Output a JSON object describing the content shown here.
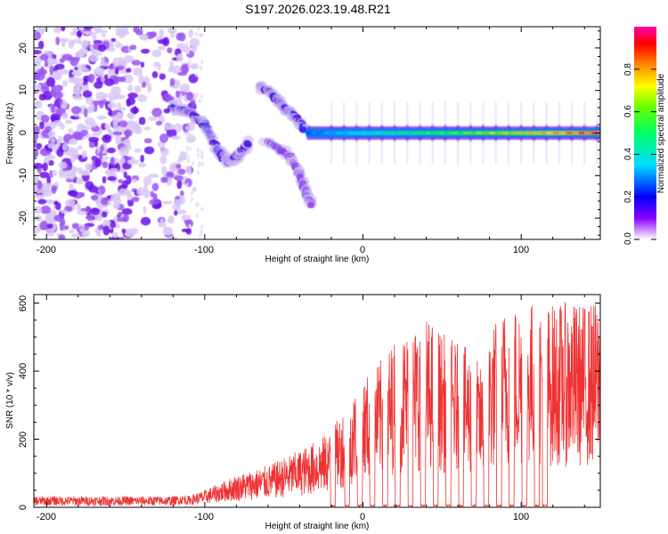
{
  "chart_data": [
    {
      "type": "heatmap",
      "title": "S197.2026.023.19.48.R21",
      "xlabel": "Height of straight line (km)",
      "ylabel": "Frequency (Hz)",
      "xlim": [
        -208,
        150
      ],
      "ylim": [
        -25,
        25
      ],
      "xticks": [
        -200,
        -100,
        0,
        100
      ],
      "yticks": [
        -20,
        -10,
        0,
        10,
        20
      ],
      "xtick_labels": [
        "-200",
        "-100",
        "0",
        "100"
      ],
      "ytick_labels": [
        "-20",
        "-10",
        "0",
        "10",
        "20"
      ],
      "colorbar": {
        "label": "Normalized spectral amplitude",
        "range": [
          0,
          1
        ],
        "ticks": [
          0.0,
          0.2,
          0.4,
          0.6,
          0.8
        ],
        "tick_labels": [
          "0.0",
          "0.2",
          "0.4",
          "0.6",
          "0.8"
        ]
      },
      "features": [
        {
          "name": "noise scatter",
          "x_range": [
            -208,
            -112
          ],
          "y_range": [
            -25,
            25
          ],
          "amplitude": 0.08
        },
        {
          "name": "descending track",
          "points": [
            [
              -120,
              6
            ],
            [
              -110,
              5
            ],
            [
              -100,
              2
            ],
            [
              -92,
              -4
            ],
            [
              -85,
              -7
            ],
            [
              -78,
              -5
            ],
            [
              -72,
              -2
            ]
          ],
          "amplitude": 0.3
        },
        {
          "name": "upper branch",
          "points": [
            [
              -65,
              11
            ],
            [
              -57,
              9
            ],
            [
              -50,
              6
            ],
            [
              -43,
              4
            ],
            [
              -37,
              1
            ]
          ],
          "amplitude": 0.3
        },
        {
          "name": "lower branch",
          "points": [
            [
              -60,
              -2
            ],
            [
              -45,
              -6
            ],
            [
              -38,
              -12
            ],
            [
              -33,
              -17
            ]
          ],
          "amplitude": 0.12
        },
        {
          "name": "carrier line",
          "x_range": [
            -35,
            150
          ],
          "y": 0,
          "amplitude_start": 0.3,
          "amplitude_end": 0.95
        }
      ]
    },
    {
      "type": "line",
      "xlabel": "Height of straight line (km)",
      "ylabel": "SNR (10 * v/v)",
      "xlim": [
        -208,
        150
      ],
      "ylim": [
        0,
        625
      ],
      "xticks": [
        -200,
        -100,
        0,
        100
      ],
      "yticks": [
        0,
        200,
        400,
        600
      ],
      "xtick_labels": [
        "-200",
        "-100",
        "0",
        "100"
      ],
      "ytick_labels": [
        "0",
        "200",
        "400",
        "600"
      ],
      "series": [
        {
          "name": "SNR",
          "color": "#ee3333",
          "envelope_x": [
            -208,
            -120,
            -112,
            -100,
            -80,
            -60,
            -40,
            -20,
            -10,
            0,
            10,
            20,
            30,
            40,
            50,
            60,
            70,
            75,
            80,
            90,
            100,
            110,
            120,
            130,
            140,
            150
          ],
          "envelope_y": [
            22,
            22,
            28,
            45,
            85,
            110,
            150,
            200,
            280,
            340,
            380,
            440,
            470,
            500,
            460,
            430,
            410,
            360,
            470,
            530,
            540,
            545,
            535,
            540,
            535,
            545
          ],
          "dropout_x": [
            -19,
            -10,
            -2,
            6,
            14,
            22,
            30,
            38,
            46,
            54,
            62,
            70,
            78,
            86,
            94,
            102,
            110,
            115
          ]
        }
      ]
    }
  ]
}
